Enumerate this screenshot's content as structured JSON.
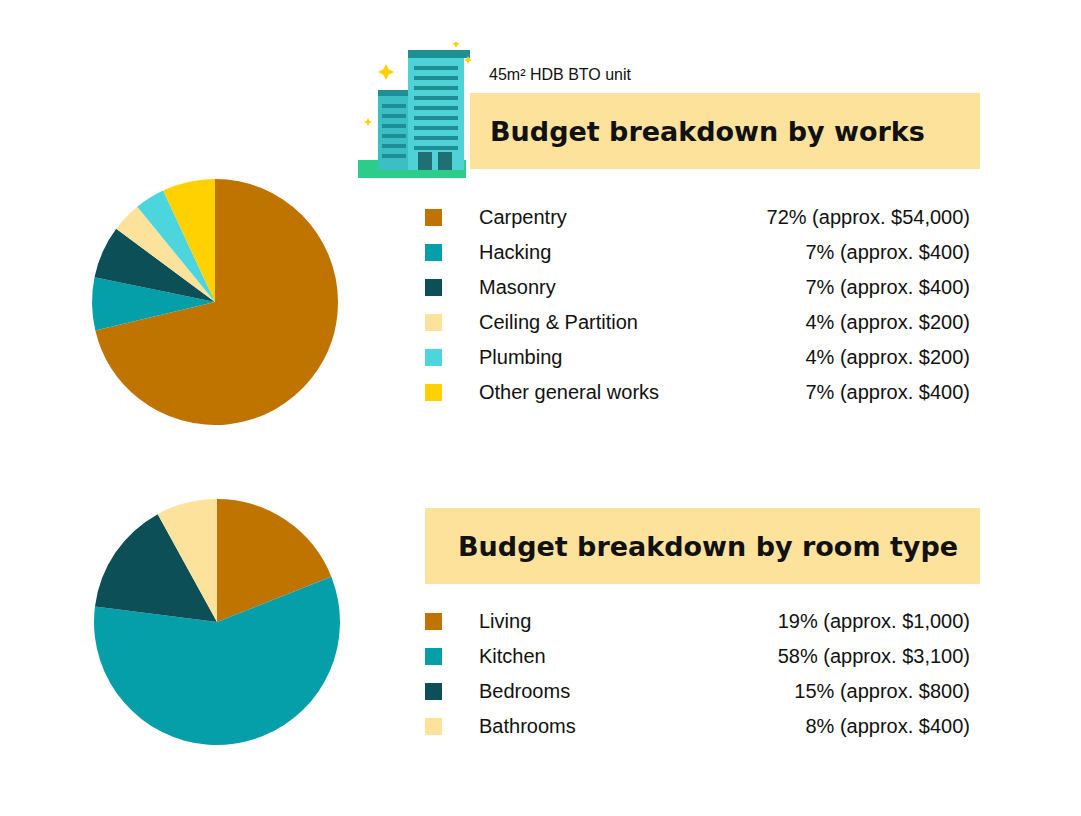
{
  "chart_data": [
    {
      "type": "pie",
      "subtitle": "45m² HDB BTO unit",
      "title": "Budget breakdown by works",
      "categories": [
        "Carpentry",
        "Hacking",
        "Masonry",
        "Ceiling & Partition",
        "Plumbing",
        "Other general works"
      ],
      "values": [
        72,
        7,
        7,
        4,
        4,
        7
      ],
      "value_labels": [
        "72% (approx. $54,000)",
        "7% (approx. $400)",
        "7% (approx. $400)",
        "4% (approx. $200)",
        "4% (approx. $200)",
        "7% (approx. $400)"
      ],
      "colors": [
        "#c07400",
        "#049fa8",
        "#0c4f56",
        "#fde29c",
        "#4dd5de",
        "#ffd100"
      ],
      "legend": "right"
    },
    {
      "type": "pie",
      "title": "Budget breakdown by room type",
      "categories": [
        "Living",
        "Kitchen",
        "Bedrooms",
        "Bathrooms"
      ],
      "values": [
        19,
        58,
        15,
        8
      ],
      "value_labels": [
        "19% (approx. $1,000)",
        "58% (approx. $3,100)",
        "15% (approx. $800)",
        "8% (approx. $400)"
      ],
      "colors": [
        "#c07400",
        "#049fa8",
        "#0c4f56",
        "#fde29c"
      ],
      "legend": "right"
    }
  ]
}
